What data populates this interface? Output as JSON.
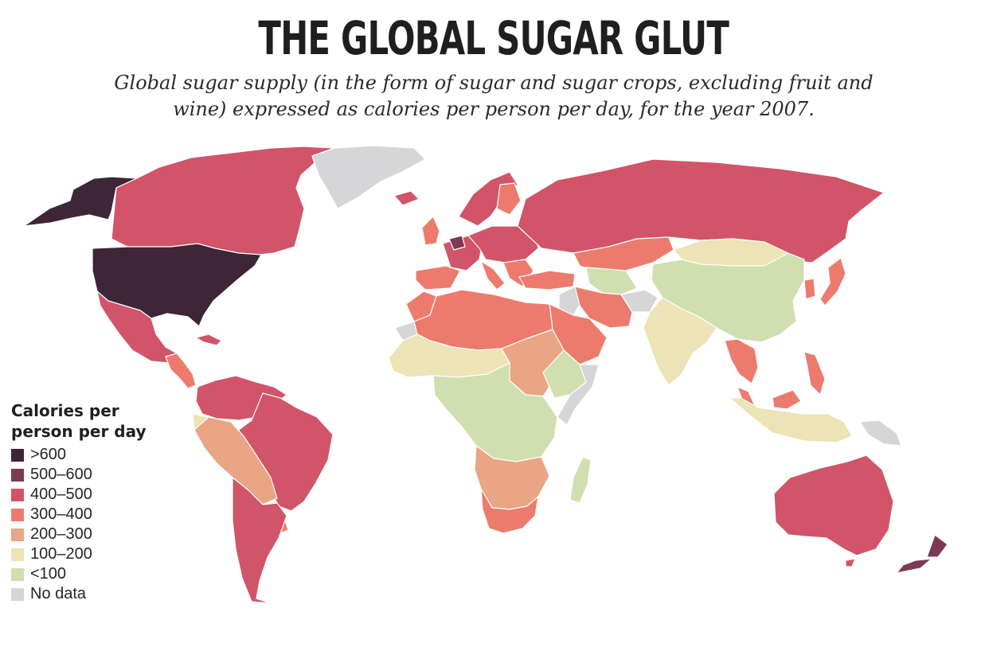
{
  "title": "THE GLOBAL SUGAR GLUT",
  "subtitle": "Global sugar supply (in the form of sugar and sugar crops, excluding fruit and wine) expressed as calories per person per day, for the year 2007.",
  "legend": {
    "title": "Calories per\nperson per day",
    "items": [
      {
        "label": ">600",
        "color": "#3d2637"
      },
      {
        "label": "500–600",
        "color": "#7b3a55"
      },
      {
        "label": "400–500",
        "color": "#d15468"
      },
      {
        "label": "300–400",
        "color": "#ec7b6d"
      },
      {
        "label": "200–300",
        "color": "#e9a584"
      },
      {
        "label": "100–200",
        "color": "#ece3b6"
      },
      {
        "label": "<100",
        "color": "#cfdfaf"
      },
      {
        "label": "No data",
        "color": "#d6d6d8"
      }
    ]
  },
  "regions": [
    {
      "name": "Alaska",
      "band": ">600"
    },
    {
      "name": "Canada",
      "band": "400–500"
    },
    {
      "name": "Greenland",
      "band": "No data"
    },
    {
      "name": "United States",
      "band": ">600"
    },
    {
      "name": "Mexico",
      "band": "400–500"
    },
    {
      "name": "Central America",
      "band": "300–400"
    },
    {
      "name": "Cuba",
      "band": "400–500"
    },
    {
      "name": "Brazil",
      "band": "400–500"
    },
    {
      "name": "Northern South America",
      "band": "400–500"
    },
    {
      "name": "Ecuador",
      "band": "100–200"
    },
    {
      "name": "Peru and Bolivia",
      "band": "200–300"
    },
    {
      "name": "Southern Cone",
      "band": "400–500"
    },
    {
      "name": "Paraguay",
      "band": "300–400"
    },
    {
      "name": "Iceland",
      "band": "400–500"
    },
    {
      "name": "Scandinavia",
      "band": "400–500"
    },
    {
      "name": "Finland",
      "band": "300–400"
    },
    {
      "name": "United Kingdom",
      "band": "300–400"
    },
    {
      "name": "Iberia",
      "band": "300–400"
    },
    {
      "name": "Western Europe",
      "band": "400–500"
    },
    {
      "name": "Benelux",
      "band": "500–600"
    },
    {
      "name": "Eastern Europe",
      "band": "400–500"
    },
    {
      "name": "Italy",
      "band": "300–400"
    },
    {
      "name": "Balkans",
      "band": "300–400"
    },
    {
      "name": "Turkey",
      "band": "300–400"
    },
    {
      "name": "Russia",
      "band": "400–500"
    },
    {
      "name": "Kazakhstan",
      "band": "300–400"
    },
    {
      "name": "Mongolia",
      "band": "100–200"
    },
    {
      "name": "Central Asia",
      "band": "<100"
    },
    {
      "name": "Iran",
      "band": "300–400"
    },
    {
      "name": "Afghanistan",
      "band": "No data"
    },
    {
      "name": "Saudi Arabia",
      "band": "300–400"
    },
    {
      "name": "Iraq",
      "band": "No data"
    },
    {
      "name": "North Africa",
      "band": "300–400"
    },
    {
      "name": "Morocco",
      "band": "300–400"
    },
    {
      "name": "Western Sahara",
      "band": "No data"
    },
    {
      "name": "Sahel",
      "band": "100–200"
    },
    {
      "name": "Sudan",
      "band": "200–300"
    },
    {
      "name": "Central Africa",
      "band": "<100"
    },
    {
      "name": "Ethiopia",
      "band": "<100"
    },
    {
      "name": "Somalia",
      "band": "No data"
    },
    {
      "name": "Southern Africa",
      "band": "200–300"
    },
    {
      "name": "South Africa",
      "band": "300–400"
    },
    {
      "name": "Madagascar",
      "band": "<100"
    },
    {
      "name": "China",
      "band": "<100"
    },
    {
      "name": "India",
      "band": "100–200"
    },
    {
      "name": "Southeast Asia",
      "band": "300–400"
    },
    {
      "name": "Malaysia",
      "band": "300–400"
    },
    {
      "name": "Indonesia",
      "band": "100–200"
    },
    {
      "name": "Philippines",
      "band": "300–400"
    },
    {
      "name": "Japan",
      "band": "300–400"
    },
    {
      "name": "Korea",
      "band": "300–400"
    },
    {
      "name": "New Guinea",
      "band": "No data"
    },
    {
      "name": "Australia",
      "band": "400–500"
    },
    {
      "name": "New Zealand",
      "band": "500–600"
    }
  ]
}
